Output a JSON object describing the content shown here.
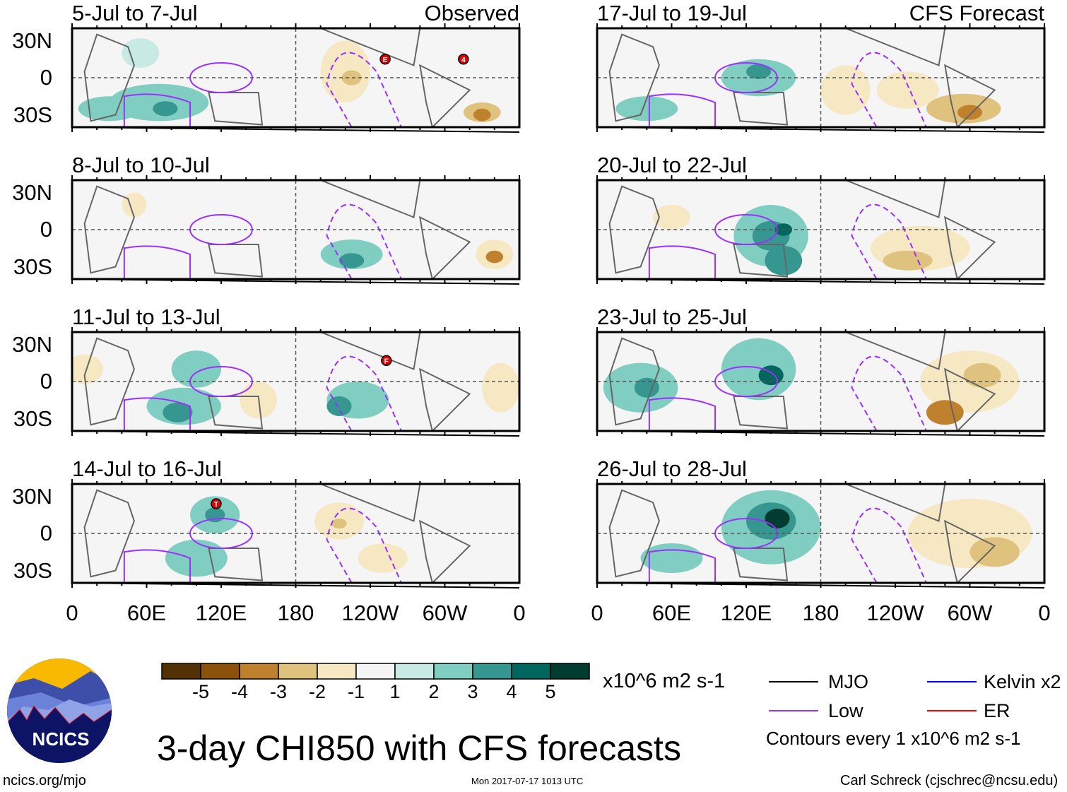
{
  "chart_data": {
    "type": "heatmap",
    "title": "3-day CHI850 with CFS forecasts",
    "units": "x10^6 m2 s-1",
    "panels": [
      {
        "period": "5-Jul to 7-Jul",
        "tag": "Observed",
        "col": 0,
        "row": 0,
        "storms": [
          {
            "label": "E",
            "lon": -108,
            "lat": 15
          },
          {
            "label": "4",
            "lon": -45,
            "lat": 15
          }
        ]
      },
      {
        "period": "8-Jul to 10-Jul",
        "tag": "",
        "col": 0,
        "row": 1,
        "storms": []
      },
      {
        "period": "11-Jul to 13-Jul",
        "tag": "",
        "col": 0,
        "row": 2,
        "storms": [
          {
            "label": "F",
            "lon": -107,
            "lat": 17
          }
        ]
      },
      {
        "period": "14-Jul to 16-Jul",
        "tag": "",
        "col": 0,
        "row": 3,
        "storms": [
          {
            "label": "T",
            "lon": 116,
            "lat": 24
          }
        ]
      },
      {
        "period": "17-Jul to 19-Jul",
        "tag": "CFS Forecast",
        "col": 1,
        "row": 0,
        "storms": []
      },
      {
        "period": "20-Jul to 22-Jul",
        "tag": "",
        "col": 1,
        "row": 1,
        "storms": []
      },
      {
        "period": "23-Jul to 25-Jul",
        "tag": "",
        "col": 1,
        "row": 2,
        "storms": []
      },
      {
        "period": "26-Jul to 28-Jul",
        "tag": "",
        "col": 1,
        "row": 3,
        "storms": []
      }
    ],
    "lat_ticks": [
      "30N",
      "0",
      "30S"
    ],
    "lon_ticks": [
      "0",
      "60E",
      "120E",
      "180",
      "120W",
      "60W",
      "0"
    ],
    "colorbar": {
      "labels": [
        "-5",
        "-4",
        "-3",
        "-2",
        "-1",
        "1",
        "2",
        "3",
        "4",
        "5"
      ],
      "colors": [
        "#543005",
        "#8c510a",
        "#bf812d",
        "#dfc27d",
        "#f6e8c3",
        "#f5f5f5",
        "#c7eae5",
        "#80cdc1",
        "#35978f",
        "#01665e",
        "#003c30"
      ]
    },
    "legend": [
      {
        "label": "MJO",
        "color": "#000000"
      },
      {
        "label": "Low",
        "color": "#9b30ff"
      },
      {
        "label": "Kelvin x2",
        "color": "#0000ff"
      },
      {
        "label": "ER",
        "color": "#ff0000"
      }
    ],
    "contour_note": "Contours every 1 x10^6 m2 s-1"
  },
  "footer": {
    "logo_text": "NCICS",
    "site": "ncics.org/mjo",
    "timestamp": "Mon 2017-07-17 1013 UTC",
    "author": "Carl Schreck (cjschrec@ncsu.edu)"
  }
}
